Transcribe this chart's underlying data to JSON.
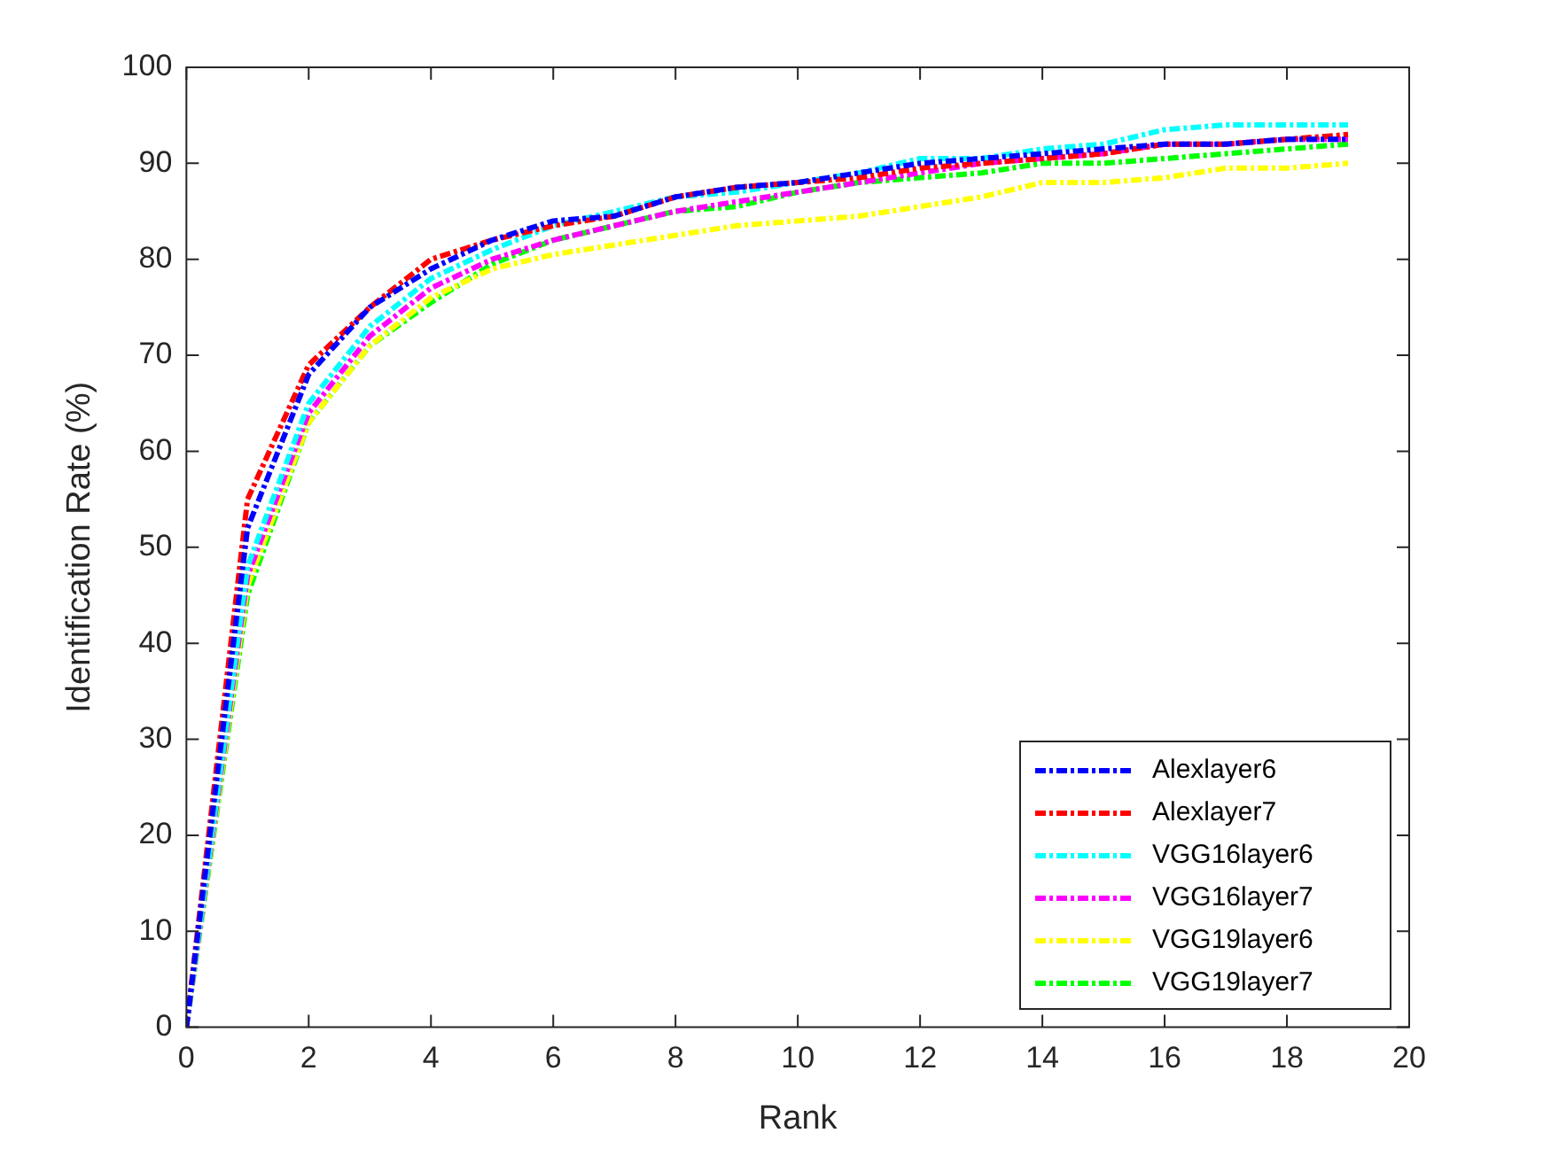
{
  "chart_data": {
    "type": "line",
    "xlabel": "Rank",
    "ylabel": "Identification Rate (%)",
    "x": [
      0,
      1,
      2,
      3,
      4,
      5,
      6,
      7,
      8,
      9,
      10,
      11,
      12,
      13,
      14,
      15,
      16,
      17,
      18,
      19
    ],
    "xlim": [
      0,
      20
    ],
    "xticks": [
      0,
      2,
      4,
      6,
      8,
      10,
      12,
      14,
      16,
      18,
      20
    ],
    "ylim": [
      0,
      100
    ],
    "yticks": [
      0,
      10,
      20,
      30,
      40,
      50,
      60,
      70,
      80,
      90,
      100
    ],
    "grid": false,
    "legend": "bottom right",
    "line_style": "dashed",
    "marker": "none",
    "series": [
      {
        "name": "Alexlayer6",
        "color": "#0000ff",
        "values": [
          0,
          52,
          68,
          75,
          79,
          82,
          84,
          84.5,
          86.5,
          87.5,
          88,
          89,
          90,
          90.5,
          91,
          91.5,
          92,
          92,
          92.5,
          92.5
        ]
      },
      {
        "name": "Alexlayer7",
        "color": "#ff0000",
        "values": [
          0,
          55,
          69,
          75,
          80,
          82,
          83.5,
          84.5,
          86.5,
          87.5,
          88,
          88.5,
          89.5,
          90,
          90.5,
          91,
          92,
          92,
          92.5,
          93
        ]
      },
      {
        "name": "VGG16layer6",
        "color": "#00ffff",
        "values": [
          0,
          48,
          65,
          73,
          78,
          81,
          83.5,
          85,
          86.5,
          87,
          88,
          89,
          90.5,
          90.5,
          91.5,
          92,
          93.5,
          94,
          94,
          94
        ]
      },
      {
        "name": "VGG16layer7",
        "color": "#ff00ff",
        "values": [
          0,
          47,
          64,
          72,
          77,
          80,
          82,
          83.5,
          85,
          86,
          87,
          88,
          89,
          90,
          90.5,
          91,
          92,
          92,
          92.5,
          92.5
        ]
      },
      {
        "name": "VGG19layer6",
        "color": "#ffff00",
        "values": [
          0,
          46,
          63,
          71,
          76,
          79,
          80.5,
          81.5,
          82.5,
          83.5,
          84,
          84.5,
          85.5,
          86.5,
          88,
          88,
          88.5,
          89.5,
          89.5,
          90
        ]
      },
      {
        "name": "VGG19layer7",
        "color": "#00ff00",
        "values": [
          0,
          45,
          63,
          71,
          75.5,
          79.5,
          82,
          83.5,
          85,
          85.5,
          87,
          88,
          88.5,
          89,
          90,
          90,
          90.5,
          91,
          91.5,
          92
        ]
      }
    ]
  }
}
